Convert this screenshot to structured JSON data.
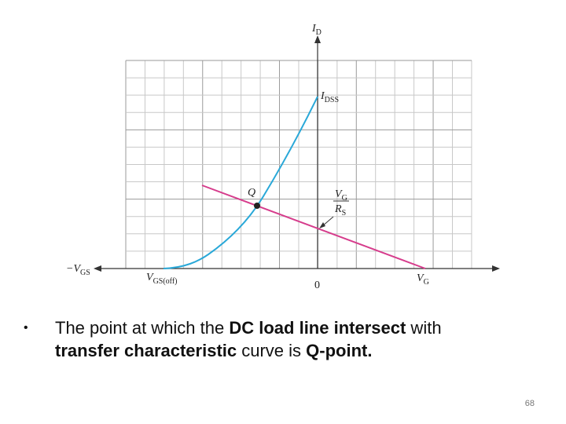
{
  "diagram": {
    "axis_labels": {
      "y_axis": {
        "main": "I",
        "sub": "D"
      },
      "x_negative": {
        "main": "−V",
        "sub": "GS"
      },
      "origin": "0"
    },
    "point_labels": {
      "idss": {
        "main": "I",
        "sub": "DSS"
      },
      "q": "Q",
      "vgs_off": {
        "main": "V",
        "sub": "GS(off)"
      },
      "vg": {
        "main": "V",
        "sub": "G"
      },
      "vg_over_rs": {
        "numerator": {
          "main": "V",
          "sub": "G"
        },
        "denominator": {
          "main": "R",
          "sub": "S"
        }
      }
    }
  },
  "bullet": {
    "lines": [
      [
        {
          "text": "The point at which the ",
          "bold": false
        },
        {
          "text": "DC load line intersect",
          "bold": true
        },
        {
          "text": " with",
          "bold": false
        }
      ],
      [
        {
          "text": "transfer characteristic",
          "bold": true
        },
        {
          "text": " curve is ",
          "bold": false
        },
        {
          "text": "Q-point.",
          "bold": true
        }
      ]
    ]
  },
  "page_number": "68"
}
